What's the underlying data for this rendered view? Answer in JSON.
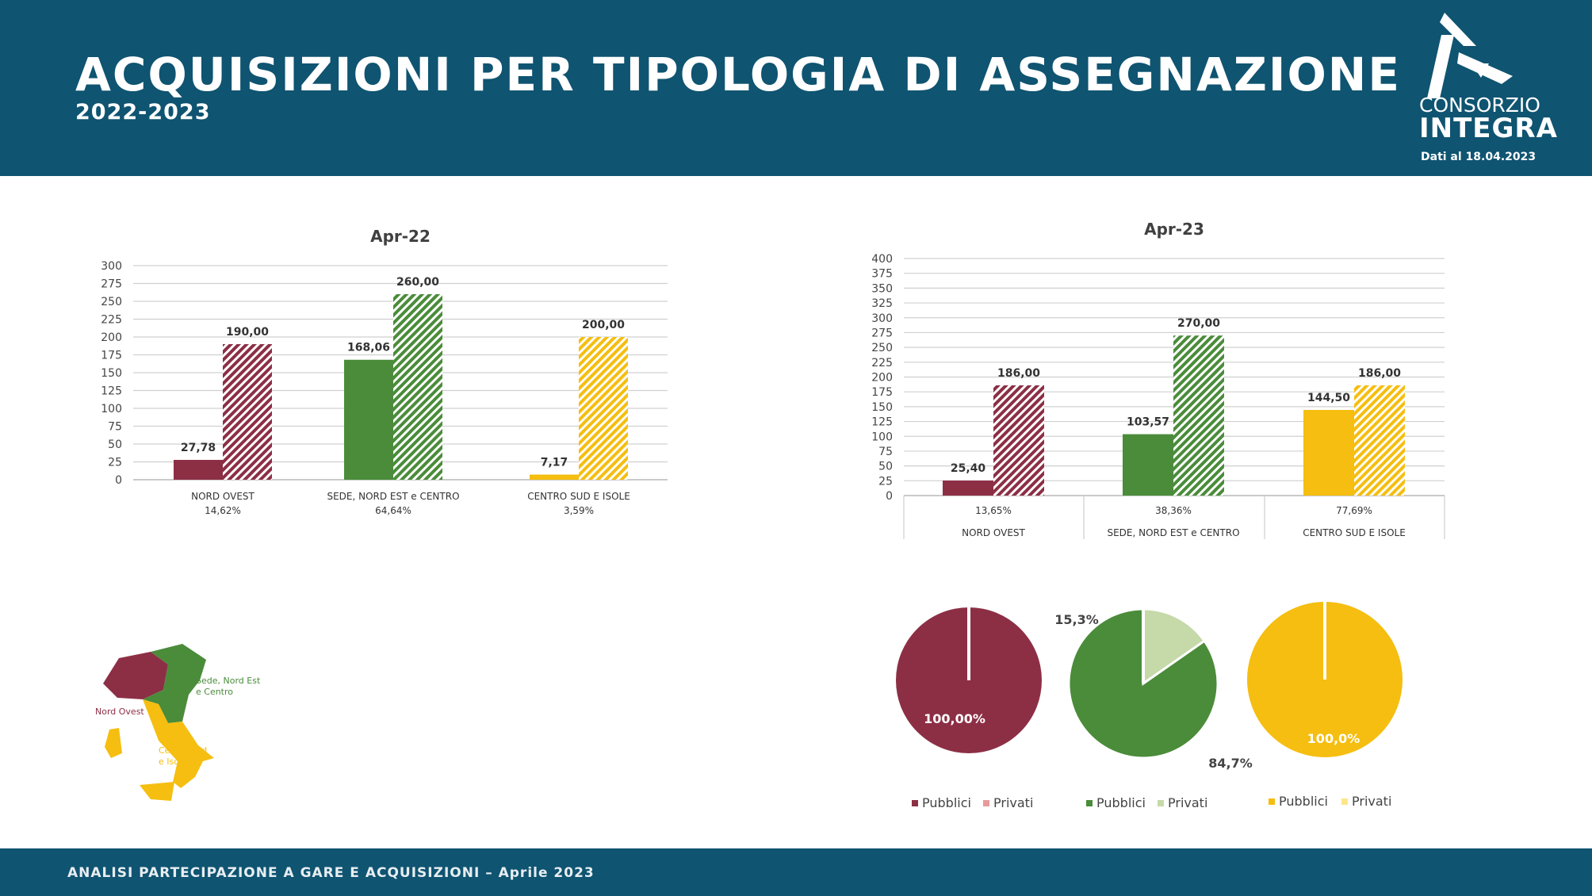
{
  "header": {
    "title": "ACQUISIZIONI PER TIPOLOGIA DI ASSEGNAZIONE",
    "subtitle": "2022-2023",
    "logo_line1": "CONSORZIO",
    "logo_line2": "INTEGRA",
    "data_date": "Dati al 18.04.2023"
  },
  "footer": {
    "text": "ANALISI PARTECIPAZIONE A GARE E ACQUISIZIONI – Aprile 2023"
  },
  "colors": {
    "nord_ovest": "#8c2f45",
    "sede_nord_est_centro": "#4a8c3a",
    "centro_sud_isole": "#f5be10",
    "privati_green": "#c5d9a9",
    "header_bg": "#0f5471"
  },
  "map": {
    "labels": [
      "Sede, Nord Est",
      "e Centro",
      "Nord Ovest",
      "Centro Sud",
      "e Isole"
    ]
  },
  "chart_data": [
    {
      "type": "bar",
      "title": "Apr-22",
      "categories": [
        "NORD OVEST",
        "SEDE, NORD EST e CENTRO",
        "CENTRO SUD E ISOLE"
      ],
      "category_percents": [
        "14,62%",
        "64,64%",
        "3,59%"
      ],
      "series": [
        {
          "values": [
            27.78,
            168.06,
            7.17
          ],
          "labels": [
            "27,78",
            "168,06",
            "7,17"
          ],
          "style": "solid"
        },
        {
          "values": [
            190.0,
            260.0,
            200.0
          ],
          "labels": [
            "190,00",
            "260,00",
            "200,00"
          ],
          "style": "hatched"
        }
      ],
      "yticks": [
        "0",
        "25",
        "50",
        "75",
        "100",
        "125",
        "150",
        "175",
        "200",
        "225",
        "250",
        "275",
        "300"
      ],
      "ylim": [
        0,
        300
      ],
      "grid": true
    },
    {
      "type": "bar",
      "title": "Apr-23",
      "categories": [
        "NORD OVEST",
        "SEDE, NORD EST e CENTRO",
        "CENTRO SUD E ISOLE"
      ],
      "category_percents": [
        "13,65%",
        "38,36%",
        "77,69%"
      ],
      "series": [
        {
          "values": [
            25.4,
            103.57,
            144.5
          ],
          "labels": [
            "25,40",
            "103,57",
            "144,50"
          ],
          "style": "solid"
        },
        {
          "values": [
            186.0,
            270.0,
            186.0
          ],
          "labels": [
            "186,00",
            "270,00",
            "186,00"
          ],
          "style": "hatched"
        }
      ],
      "yticks": [
        "0",
        "25",
        "50",
        "75",
        "100",
        "125",
        "150",
        "175",
        "200",
        "225",
        "250",
        "275",
        "300",
        "325",
        "350",
        "375",
        "400"
      ],
      "ylim": [
        0,
        400
      ],
      "grid": true
    },
    {
      "type": "pie",
      "slices": [
        {
          "name": "Pubblici",
          "value": 100.0,
          "label": "100,00%"
        },
        {
          "name": "Privati",
          "value": 0.0,
          "label": ""
        }
      ],
      "legend": [
        "Pubblici",
        "Privati"
      ]
    },
    {
      "type": "pie",
      "slices": [
        {
          "name": "Pubblici",
          "value": 84.7,
          "label": "84,7%"
        },
        {
          "name": "Privati",
          "value": 15.3,
          "label": "15,3%"
        }
      ],
      "legend": [
        "Pubblici",
        "Privati"
      ]
    },
    {
      "type": "pie",
      "slices": [
        {
          "name": "Pubblici",
          "value": 100.0,
          "label": "100,0%"
        },
        {
          "name": "Privati",
          "value": 0.0,
          "label": ""
        }
      ],
      "legend": [
        "Pubblici",
        "Privati"
      ]
    }
  ]
}
